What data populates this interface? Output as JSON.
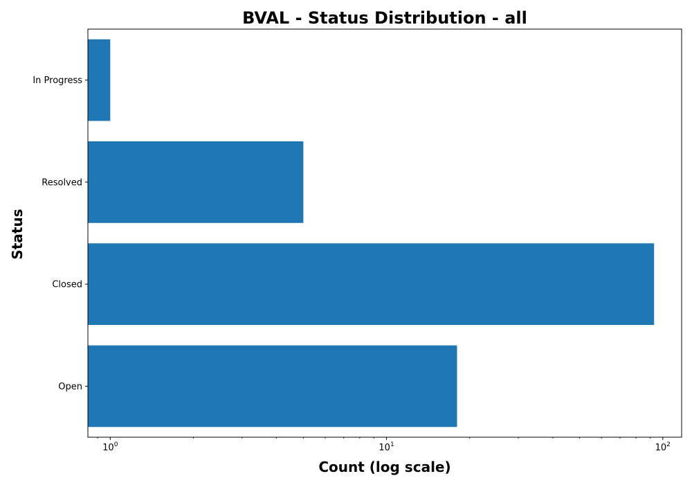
{
  "chart_data": {
    "type": "bar",
    "orientation": "horizontal",
    "title": "BVAL - Status Distribution - all",
    "xlabel": "Count (log scale)",
    "ylabel": "Status",
    "x_scale": "log",
    "xlim": [
      0.83,
      117
    ],
    "categories": [
      "Open",
      "Closed",
      "Resolved",
      "In Progress"
    ],
    "values": [
      18,
      93,
      5,
      1
    ],
    "x_ticks": [
      {
        "value": 1,
        "base": "10",
        "exp": "0"
      },
      {
        "value": 10,
        "base": "10",
        "exp": "1"
      },
      {
        "value": 100,
        "base": "10",
        "exp": "2"
      }
    ],
    "bar_color": "#1f77b4",
    "grid": false,
    "legend": "none"
  }
}
